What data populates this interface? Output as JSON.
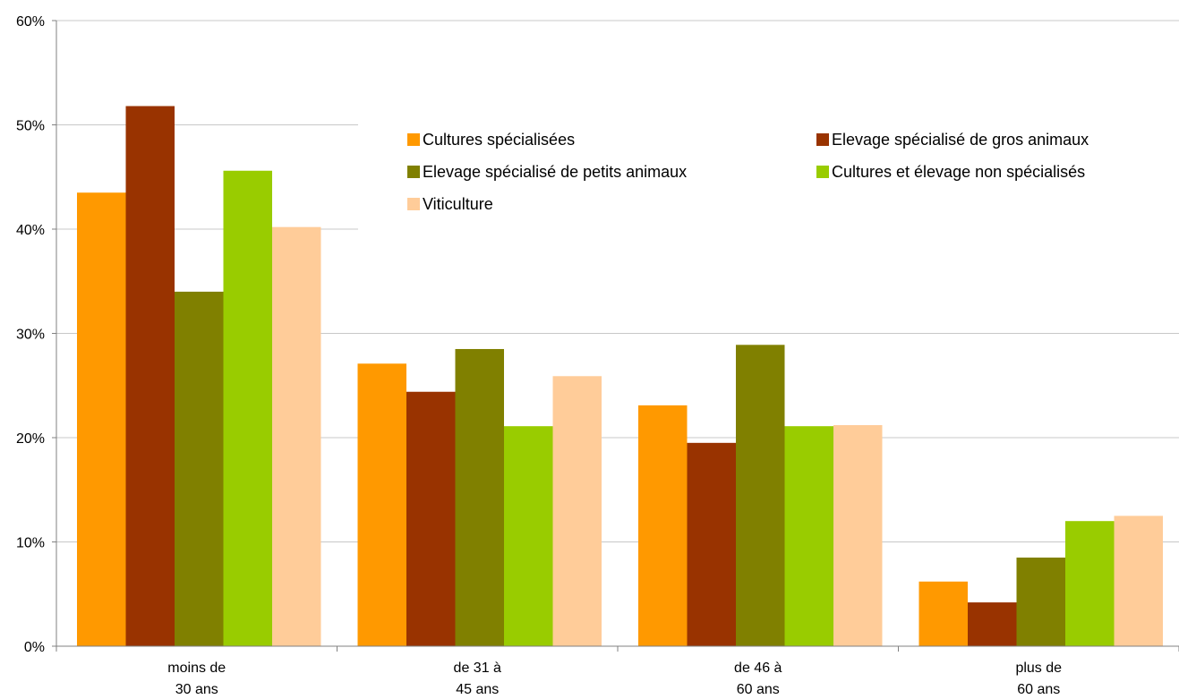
{
  "chart_data": {
    "type": "bar",
    "categories": [
      [
        "moins de",
        "30 ans"
      ],
      [
        "de 31 à",
        "45 ans"
      ],
      [
        "de 46 à",
        "60 ans"
      ],
      [
        "plus de",
        "60 ans"
      ]
    ],
    "series": [
      {
        "name": "Cultures spécialisées",
        "color": "#FF9900",
        "values": [
          43.5,
          27.1,
          23.1,
          6.2
        ]
      },
      {
        "name": "Elevage spécialisé de gros animaux",
        "color": "#993300",
        "values": [
          51.8,
          24.4,
          19.5,
          4.2
        ]
      },
      {
        "name": "Elevage spécialisé de petits animaux",
        "color": "#808000",
        "values": [
          34.0,
          28.5,
          28.9,
          8.5
        ]
      },
      {
        "name": "Cultures et élevage non spécialisés",
        "color": "#99CC00",
        "values": [
          45.6,
          21.1,
          21.1,
          12.0
        ]
      },
      {
        "name": "Viticulture",
        "color": "#FFCC99",
        "values": [
          40.2,
          25.9,
          21.2,
          12.5
        ]
      }
    ],
    "y_ticks": [
      "0%",
      "10%",
      "20%",
      "30%",
      "40%",
      "50%",
      "60%"
    ],
    "ylim": [
      0,
      60
    ],
    "grid": true,
    "legend_position": "top-right (inside plot)",
    "title": "",
    "xlabel": "",
    "ylabel": ""
  }
}
